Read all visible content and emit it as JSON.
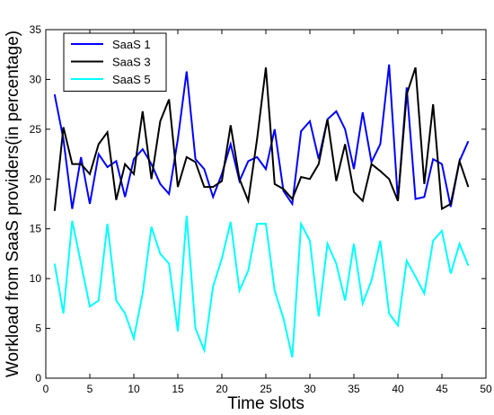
{
  "chart_data": {
    "type": "line",
    "title": "",
    "xlabel": "Time slots",
    "ylabel": "Workload from SaaS providers(in percentage)",
    "xlim": [
      0,
      50
    ],
    "ylim": [
      0,
      35
    ],
    "xticks": [
      0,
      5,
      10,
      15,
      20,
      25,
      30,
      35,
      40,
      45,
      50
    ],
    "yticks": [
      0,
      5,
      10,
      15,
      20,
      25,
      30,
      35
    ],
    "grid": false,
    "legend_position": "top-left",
    "x": [
      1,
      2,
      3,
      4,
      5,
      6,
      7,
      8,
      9,
      10,
      11,
      12,
      13,
      14,
      15,
      16,
      17,
      18,
      19,
      20,
      21,
      22,
      23,
      24,
      25,
      26,
      27,
      28,
      29,
      30,
      31,
      32,
      33,
      34,
      35,
      36,
      37,
      38,
      39,
      40,
      41,
      42,
      43,
      44,
      45,
      46,
      47,
      48
    ],
    "series": [
      {
        "name": "SaaS 1",
        "color": "#0000ff",
        "values": [
          28.5,
          24.0,
          17.0,
          22.2,
          17.5,
          22.5,
          21.2,
          21.8,
          18.2,
          22.0,
          23.0,
          21.5,
          19.5,
          18.5,
          24.0,
          30.8,
          22.0,
          21.0,
          18.2,
          20.5,
          23.5,
          19.8,
          21.8,
          22.2,
          21.0,
          25.0,
          18.8,
          17.5,
          24.8,
          25.8,
          22.0,
          26.0,
          26.8,
          25.0,
          21.0,
          26.7,
          21.7,
          23.5,
          31.5,
          17.8,
          29.2,
          18.0,
          18.2,
          22.0,
          21.5,
          17.2,
          21.8,
          23.8
        ]
      },
      {
        "name": "SaaS 3",
        "color": "#000000",
        "values": [
          16.8,
          25.2,
          21.5,
          21.5,
          20.5,
          23.5,
          24.7,
          17.9,
          21.5,
          20.5,
          26.8,
          20.0,
          25.8,
          28.0,
          19.2,
          22.2,
          21.7,
          19.2,
          19.2,
          19.8,
          25.4,
          20.0,
          17.8,
          24.0,
          31.2,
          19.5,
          19.0,
          18.0,
          20.2,
          20.0,
          21.5,
          26.0,
          19.8,
          23.5,
          18.7,
          17.8,
          21.5,
          20.8,
          20.0,
          17.8,
          28.5,
          31.2,
          19.5,
          27.5,
          17.0,
          17.5,
          21.8,
          19.2
        ]
      },
      {
        "name": "SaaS 5",
        "color": "#00ffff",
        "values": [
          11.5,
          6.5,
          15.8,
          11.5,
          7.2,
          7.8,
          15.5,
          7.8,
          6.5,
          4.0,
          8.5,
          15.2,
          12.5,
          11.5,
          4.7,
          16.3,
          5.0,
          2.8,
          9.2,
          12.0,
          15.7,
          8.8,
          10.8,
          15.5,
          15.5,
          8.8,
          6.0,
          2.1,
          15.5,
          13.8,
          6.2,
          13.5,
          11.5,
          7.8,
          13.5,
          7.5,
          9.8,
          13.8,
          6.5,
          5.3,
          11.8,
          10.2,
          8.5,
          13.8,
          14.8,
          10.5,
          13.5,
          11.3
        ]
      }
    ]
  }
}
